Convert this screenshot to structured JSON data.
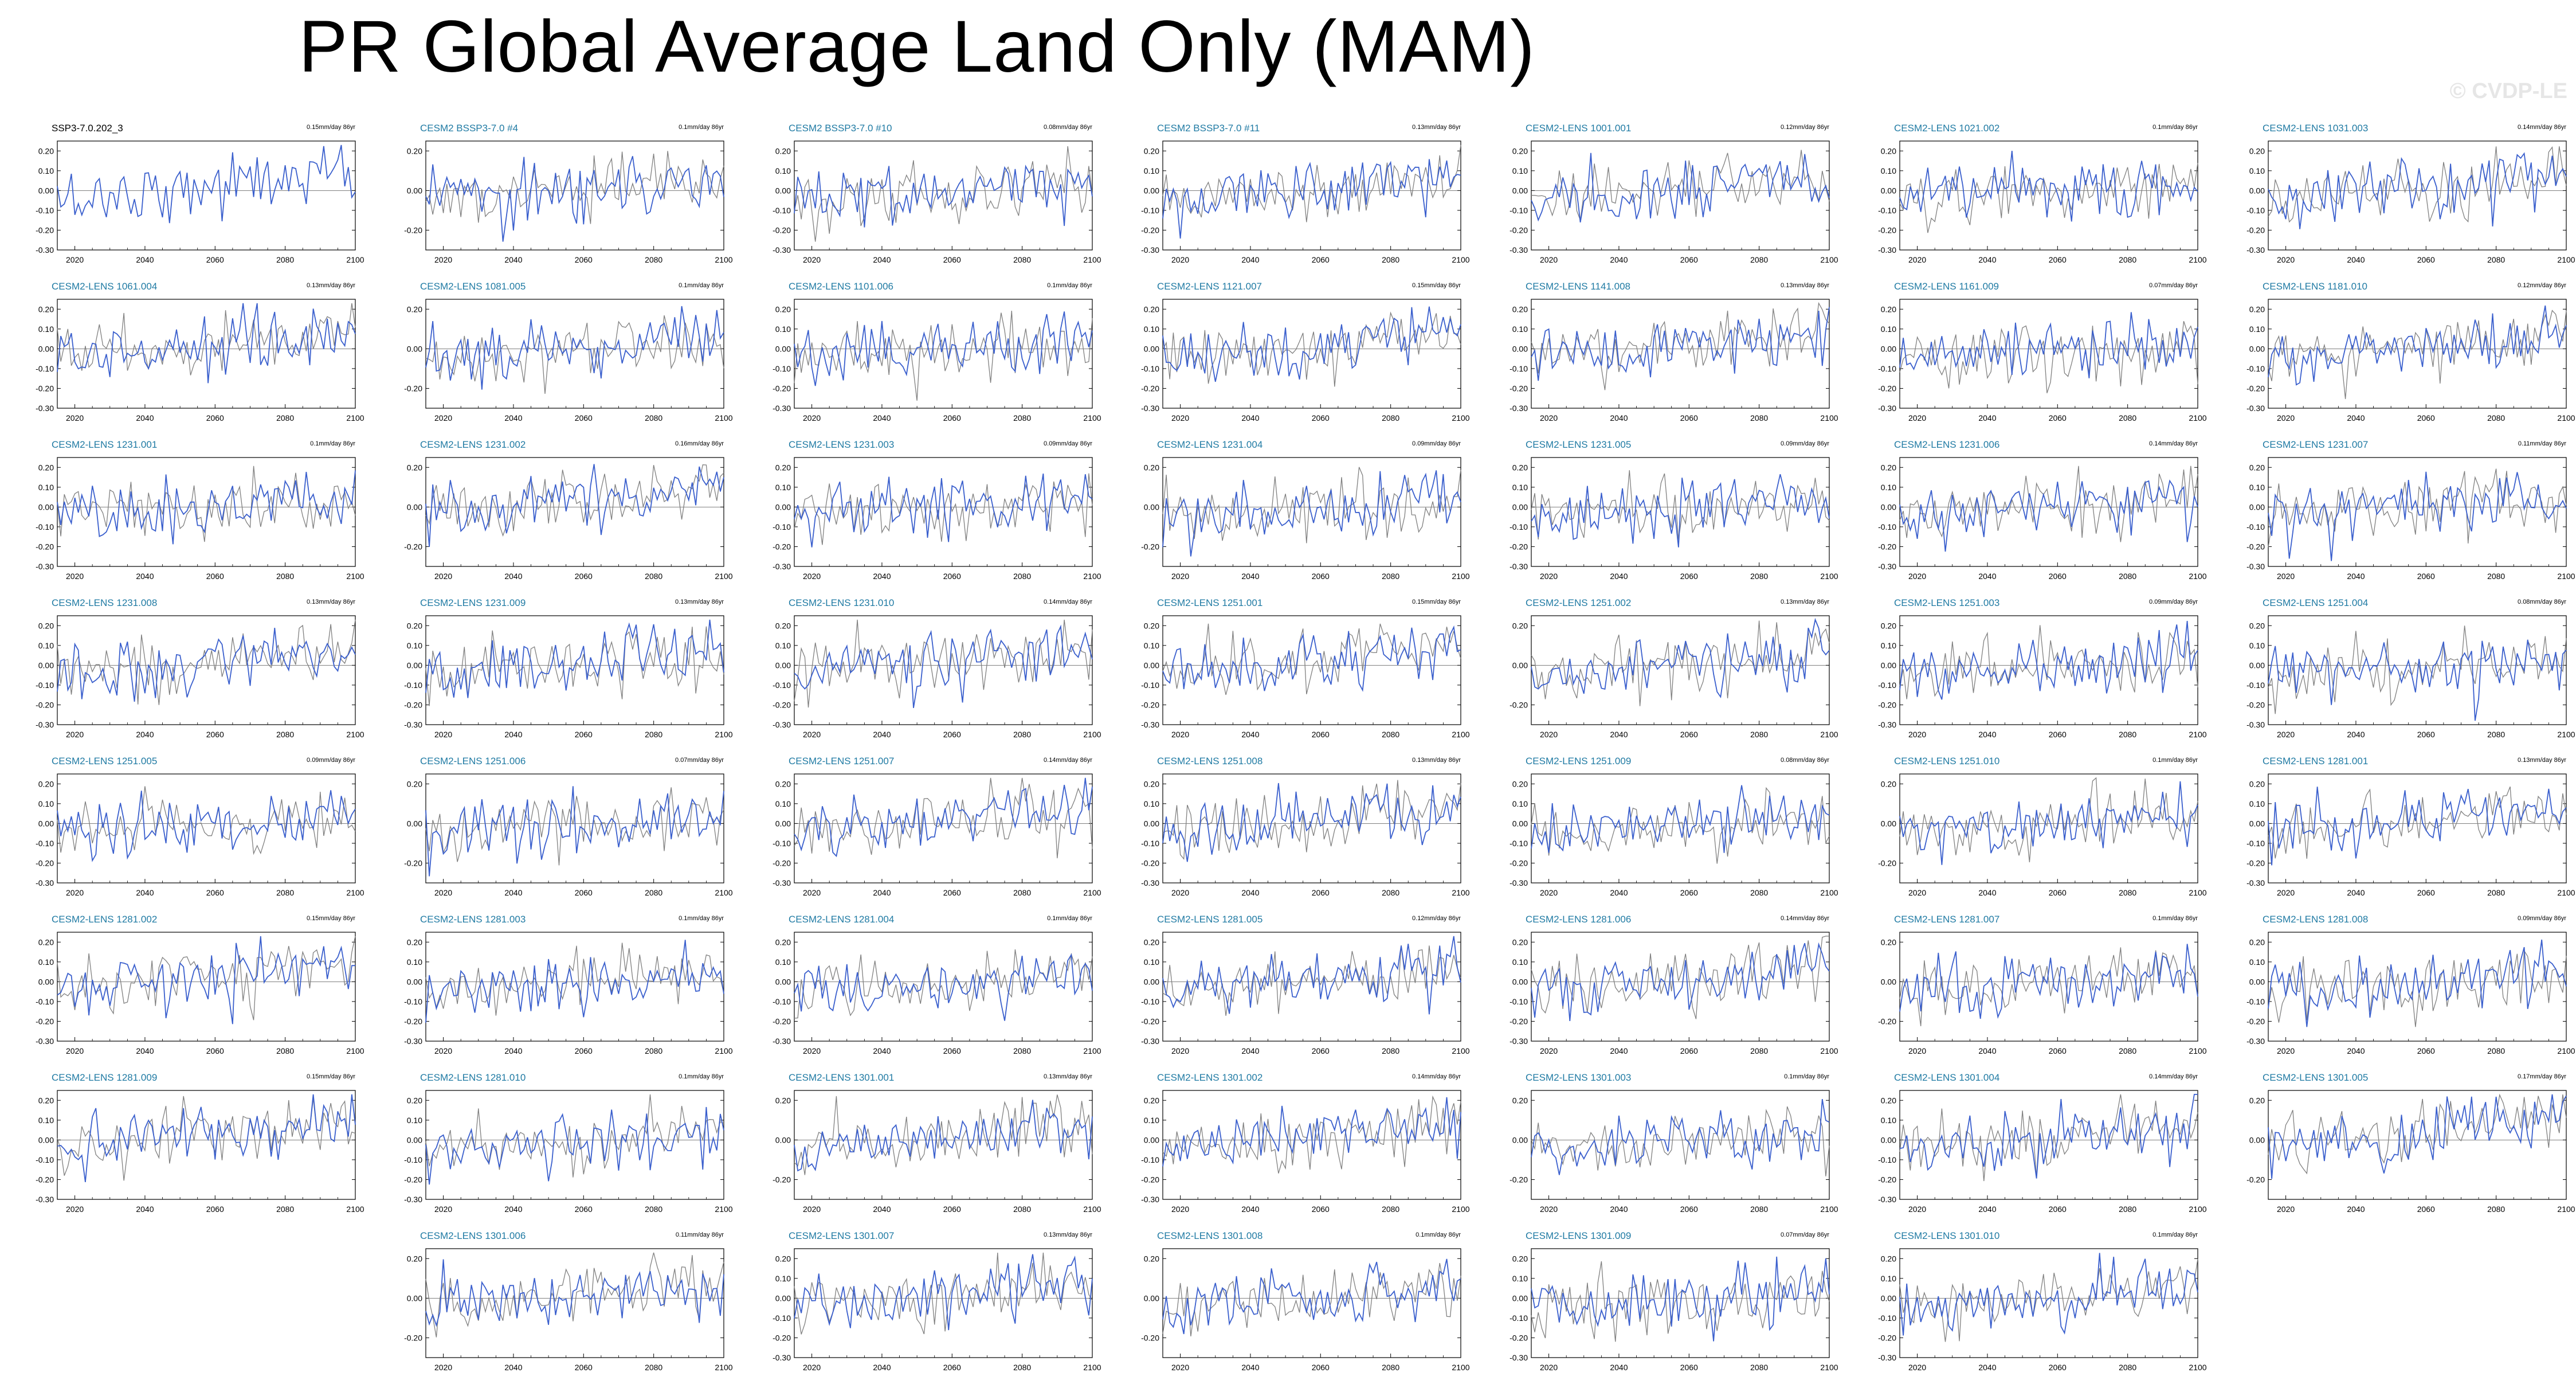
{
  "title": "PR Global Average Land Only (MAM)",
  "watermark": "© CVDP-LE",
  "colors": {
    "observed_label": "#000000",
    "model_label": "#1f7aa3",
    "model_line": "#3a5fcd",
    "obs_line": "#808080",
    "zero_line": "#000000"
  },
  "chart_data": {
    "type": "line",
    "description_series": [
      "Ensemble member (blue)",
      "Observations (gray)"
    ],
    "x_range": [
      2015,
      2100
    ],
    "x_ticks": [
      2020,
      2040,
      2060,
      2080,
      2100
    ],
    "y_ticks_full": [
      "0.20",
      "0.10",
      "0.00",
      "-0.10",
      "-0.20",
      "-0.30"
    ],
    "y_ticks_sparse": [
      "0.20",
      "0.00",
      "-0.20"
    ],
    "panels": [
      {
        "label": "SSP3-7.0.202_3",
        "trend": "0.15mm/day 86yr",
        "row": 0,
        "col": 0,
        "yticks": "full",
        "observed": true
      },
      {
        "label": "CESM2 BSSP3-7.0 #4",
        "trend": "0.1mm/day 86yr",
        "row": 0,
        "col": 1,
        "yticks": "sparse"
      },
      {
        "label": "CESM2 BSSP3-7.0 #10",
        "trend": "0.08mm/day 86yr",
        "row": 0,
        "col": 2,
        "yticks": "full"
      },
      {
        "label": "CESM2 BSSP3-7.0 #11",
        "trend": "0.13mm/day 86yr",
        "row": 0,
        "col": 3,
        "yticks": "full"
      },
      {
        "label": "CESM2-LENS 1001.001",
        "trend": "0.12mm/day 86yr",
        "row": 0,
        "col": 4,
        "yticks": "full"
      },
      {
        "label": "CESM2-LENS 1021.002",
        "trend": "0.1mm/day 86yr",
        "row": 0,
        "col": 5,
        "yticks": "full"
      },
      {
        "label": "CESM2-LENS 1031.003",
        "trend": "0.14mm/day 86yr",
        "row": 0,
        "col": 6,
        "yticks": "full"
      },
      {
        "label": "CESM2-LENS 1061.004",
        "trend": "0.13mm/day 86yr",
        "row": 1,
        "col": 0,
        "yticks": "full"
      },
      {
        "label": "CESM2-LENS 1081.005",
        "trend": "0.1mm/day 86yr",
        "row": 1,
        "col": 1,
        "yticks": "sparse"
      },
      {
        "label": "CESM2-LENS 1101.006",
        "trend": "0.1mm/day 86yr",
        "row": 1,
        "col": 2,
        "yticks": "full"
      },
      {
        "label": "CESM2-LENS 1121.007",
        "trend": "0.15mm/day 86yr",
        "row": 1,
        "col": 3,
        "yticks": "full"
      },
      {
        "label": "CESM2-LENS 1141.008",
        "trend": "0.13mm/day 86yr",
        "row": 1,
        "col": 4,
        "yticks": "full"
      },
      {
        "label": "CESM2-LENS 1161.009",
        "trend": "0.07mm/day 86yr",
        "row": 1,
        "col": 5,
        "yticks": "full"
      },
      {
        "label": "CESM2-LENS 1181.010",
        "trend": "0.12mm/day 86yr",
        "row": 1,
        "col": 6,
        "yticks": "full"
      },
      {
        "label": "CESM2-LENS 1231.001",
        "trend": "0.1mm/day 86yr",
        "row": 2,
        "col": 0,
        "yticks": "full"
      },
      {
        "label": "CESM2-LENS 1231.002",
        "trend": "0.16mm/day 86yr",
        "row": 2,
        "col": 1,
        "yticks": "sparse"
      },
      {
        "label": "CESM2-LENS 1231.003",
        "trend": "0.09mm/day 86yr",
        "row": 2,
        "col": 2,
        "yticks": "full"
      },
      {
        "label": "CESM2-LENS 1231.004",
        "trend": "0.09mm/day 86yr",
        "row": 2,
        "col": 3,
        "yticks": "sparse"
      },
      {
        "label": "CESM2-LENS 1231.005",
        "trend": "0.09mm/day 86yr",
        "row": 2,
        "col": 4,
        "yticks": "full"
      },
      {
        "label": "CESM2-LENS 1231.006",
        "trend": "0.14mm/day 86yr",
        "row": 2,
        "col": 5,
        "yticks": "full"
      },
      {
        "label": "CESM2-LENS 1231.007",
        "trend": "0.11mm/day 86yr",
        "row": 2,
        "col": 6,
        "yticks": "full"
      },
      {
        "label": "CESM2-LENS 1231.008",
        "trend": "0.13mm/day 86yr",
        "row": 3,
        "col": 0,
        "yticks": "full"
      },
      {
        "label": "CESM2-LENS 1231.009",
        "trend": "0.13mm/day 86yr",
        "row": 3,
        "col": 1,
        "yticks": "full"
      },
      {
        "label": "CESM2-LENS 1231.010",
        "trend": "0.14mm/day 86yr",
        "row": 3,
        "col": 2,
        "yticks": "full"
      },
      {
        "label": "CESM2-LENS 1251.001",
        "trend": "0.15mm/day 86yr",
        "row": 3,
        "col": 3,
        "yticks": "full"
      },
      {
        "label": "CESM2-LENS 1251.002",
        "trend": "0.13mm/day 86yr",
        "row": 3,
        "col": 4,
        "yticks": "sparse"
      },
      {
        "label": "CESM2-LENS 1251.003",
        "trend": "0.09mm/day 86yr",
        "row": 3,
        "col": 5,
        "yticks": "full"
      },
      {
        "label": "CESM2-LENS 1251.004",
        "trend": "0.08mm/day 86yr",
        "row": 3,
        "col": 6,
        "yticks": "full"
      },
      {
        "label": "CESM2-LENS 1251.005",
        "trend": "0.09mm/day 86yr",
        "row": 4,
        "col": 0,
        "yticks": "full"
      },
      {
        "label": "CESM2-LENS 1251.006",
        "trend": "0.07mm/day 86yr",
        "row": 4,
        "col": 1,
        "yticks": "sparse"
      },
      {
        "label": "CESM2-LENS 1251.007",
        "trend": "0.14mm/day 86yr",
        "row": 4,
        "col": 2,
        "yticks": "full"
      },
      {
        "label": "CESM2-LENS 1251.008",
        "trend": "0.13mm/day 86yr",
        "row": 4,
        "col": 3,
        "yticks": "full"
      },
      {
        "label": "CESM2-LENS 1251.009",
        "trend": "0.08mm/day 86yr",
        "row": 4,
        "col": 4,
        "yticks": "full"
      },
      {
        "label": "CESM2-LENS 1251.010",
        "trend": "0.1mm/day 86yr",
        "row": 4,
        "col": 5,
        "yticks": "sparse"
      },
      {
        "label": "CESM2-LENS 1281.001",
        "trend": "0.13mm/day 86yr",
        "row": 4,
        "col": 6,
        "yticks": "full"
      },
      {
        "label": "CESM2-LENS 1281.002",
        "trend": "0.15mm/day 86yr",
        "row": 5,
        "col": 0,
        "yticks": "full"
      },
      {
        "label": "CESM2-LENS 1281.003",
        "trend": "0.1mm/day 86yr",
        "row": 5,
        "col": 1,
        "yticks": "full"
      },
      {
        "label": "CESM2-LENS 1281.004",
        "trend": "0.1mm/day 86yr",
        "row": 5,
        "col": 2,
        "yticks": "full"
      },
      {
        "label": "CESM2-LENS 1281.005",
        "trend": "0.12mm/day 86yr",
        "row": 5,
        "col": 3,
        "yticks": "full"
      },
      {
        "label": "CESM2-LENS 1281.006",
        "trend": "0.14mm/day 86yr",
        "row": 5,
        "col": 4,
        "yticks": "full"
      },
      {
        "label": "CESM2-LENS 1281.007",
        "trend": "0.1mm/day 86yr",
        "row": 5,
        "col": 5,
        "yticks": "sparse"
      },
      {
        "label": "CESM2-LENS 1281.008",
        "trend": "0.09mm/day 86yr",
        "row": 5,
        "col": 6,
        "yticks": "full"
      },
      {
        "label": "CESM2-LENS 1281.009",
        "trend": "0.15mm/day 86yr",
        "row": 6,
        "col": 0,
        "yticks": "full"
      },
      {
        "label": "CESM2-LENS 1281.010",
        "trend": "0.1mm/day 86yr",
        "row": 6,
        "col": 1,
        "yticks": "full"
      },
      {
        "label": "CESM2-LENS 1301.001",
        "trend": "0.13mm/day 86yr",
        "row": 6,
        "col": 2,
        "yticks": "sparse"
      },
      {
        "label": "CESM2-LENS 1301.002",
        "trend": "0.14mm/day 86yr",
        "row": 6,
        "col": 3,
        "yticks": "full"
      },
      {
        "label": "CESM2-LENS 1301.003",
        "trend": "0.1mm/day 86yr",
        "row": 6,
        "col": 4,
        "yticks": "sparse"
      },
      {
        "label": "CESM2-LENS 1301.004",
        "trend": "0.14mm/day 86yr",
        "row": 6,
        "col": 5,
        "yticks": "full"
      },
      {
        "label": "CESM2-LENS 1301.005",
        "trend": "0.17mm/day 86yr",
        "row": 6,
        "col": 6,
        "yticks": "sparse"
      },
      {
        "label": "CESM2-LENS 1301.006",
        "trend": "0.11mm/day 86yr",
        "row": 7,
        "col": 1,
        "yticks": "sparse"
      },
      {
        "label": "CESM2-LENS 1301.007",
        "trend": "0.13mm/day 86yr",
        "row": 7,
        "col": 2,
        "yticks": "full"
      },
      {
        "label": "CESM2-LENS 1301.008",
        "trend": "0.1mm/day 86yr",
        "row": 7,
        "col": 3,
        "yticks": "sparse"
      },
      {
        "label": "CESM2-LENS 1301.009",
        "trend": "0.07mm/day 86yr",
        "row": 7,
        "col": 4,
        "yticks": "full"
      },
      {
        "label": "CESM2-LENS 1301.010",
        "trend": "0.1mm/day 86yr",
        "row": 7,
        "col": 5,
        "yticks": "full"
      }
    ]
  }
}
